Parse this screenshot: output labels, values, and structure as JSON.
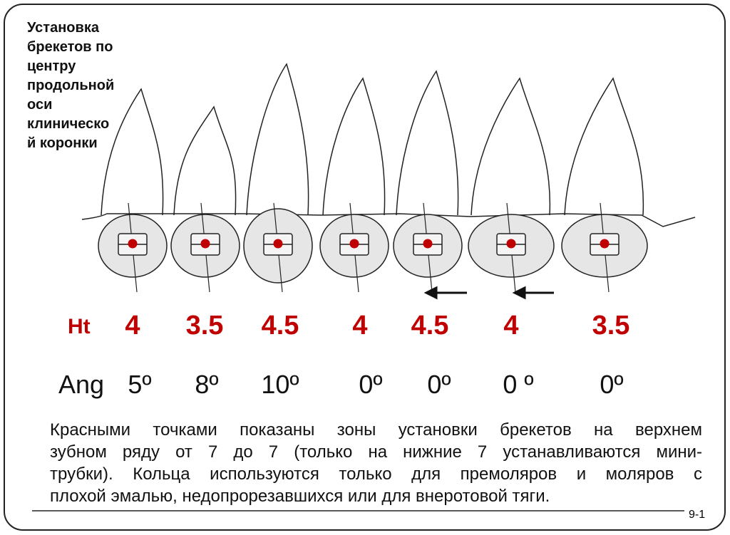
{
  "title_lines": [
    "Установка",
    "брекетов по",
    "центру",
    "продольной",
    "оси",
    "клиническо",
    "й коронки"
  ],
  "ht": {
    "label": "Ht",
    "values": [
      4,
      3.5,
      4.5,
      4,
      4.5,
      4,
      3.5
    ]
  },
  "ang": {
    "label": "Ang",
    "values": [
      "5º",
      "8º",
      "10º",
      "0º",
      "0º",
      "0 º",
      "0º"
    ]
  },
  "description_lines": [
    "Красными точками показаны зоны установки брекетов на верхнем",
    "зубном ряду от 7 до 7 (только на нижние 7 устанавливаются мини-",
    "трубки). Кольца используются только для премоляров и моляров с",
    "плохой эмалью, недопрорезавшихся или для внеротовой тяги."
  ],
  "page_number": "9-1"
}
